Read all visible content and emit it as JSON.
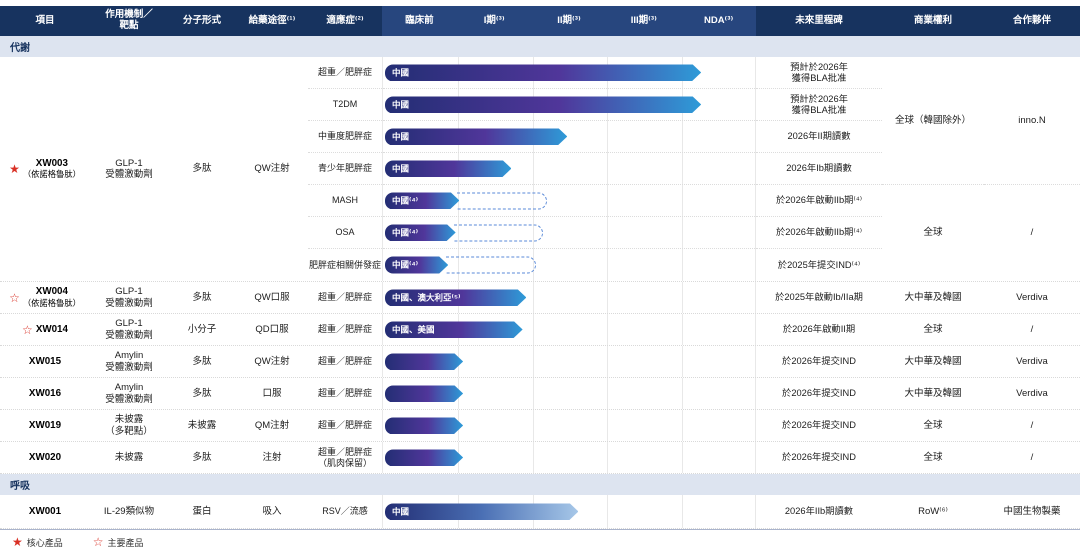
{
  "columns": {
    "project": "項目",
    "mechanism": "作用機制／\n靶點",
    "molecule": "分子形式",
    "route": "給藥途徑⁽¹⁾",
    "indication": "適應症⁽²⁾",
    "phases": [
      "臨床前",
      "I期⁽³⁾",
      "II期⁽³⁾",
      "III期⁽³⁾",
      "NDA⁽³⁾"
    ],
    "milestone": "未來里程碑",
    "rights": "商業權利",
    "partner": "合作夥伴"
  },
  "sections": [
    {
      "label": "代謝"
    },
    {
      "label": "呼吸"
    }
  ],
  "colors": {
    "header_navy": "#17335f",
    "phase_header": "#27467e",
    "band_bg": "#dde4f0",
    "bar_start": "#232e74",
    "bar_mid": "#50369a",
    "bar_end": "#2e9bd8",
    "bar_light_end": "#a6c7e8",
    "star_red": "#d93025"
  },
  "groups": [
    {
      "star": "★",
      "code": "XW003",
      "cname": "（依諾格魯肽）",
      "mechanism": "GLP-1\n受體激動劑",
      "molecule": "多肽",
      "route": "QW注射",
      "rows": [
        {
          "indication": "超重／肥胖症",
          "bar": {
            "label": "中國",
            "style": "width:85%"
          },
          "milestone": "預計於2026年\n獲得BLA批准"
        },
        {
          "indication": "T2DM",
          "bar": {
            "label": "中國",
            "style": "width:85%"
          },
          "milestone": "預計於2026年\n獲得BLA批准"
        },
        {
          "indication": "中重度肥胖症",
          "bar": {
            "label": "中國",
            "style": "width:49%"
          },
          "milestone": "2026年II期讀數"
        },
        {
          "indication": "青少年肥胖症",
          "bar": {
            "label": "中國",
            "style": "width:34%"
          },
          "milestone": "2026年Ib期讀數"
        },
        {
          "indication": "MASH",
          "bar": {
            "label": "中國⁽⁴⁾",
            "style": "width:20%",
            "dash": "left:20%;width:24%"
          },
          "milestone": "於2026年啟動IIb期⁽⁴⁾"
        },
        {
          "indication": "OSA",
          "bar": {
            "label": "中國⁽⁴⁾",
            "style": "width:19%",
            "dash": "left:19%;width:24%"
          },
          "milestone": "於2026年啟動IIb期⁽⁴⁾"
        },
        {
          "indication": "肥胖症相關併發症",
          "bar": {
            "label": "中國⁽⁴⁾",
            "style": "width:17%",
            "dash": "left:17%;width:24%"
          },
          "milestone": "於2025年提交IND⁽⁴⁾"
        }
      ],
      "rights": [
        "全球（韓國除外）",
        "全球"
      ],
      "partners": [
        "inno.N",
        "/"
      ]
    },
    {
      "star": "☆",
      "code": "XW004",
      "cname": "（依諾格魯肽）",
      "mechanism": "GLP-1\n受體激動劑",
      "molecule": "多肽",
      "route": "QW口服",
      "rows": [
        {
          "indication": "超重／肥胖症",
          "bar": {
            "label": "中國、澳大利亞⁽⁵⁾",
            "style": "width:38%"
          },
          "milestone": "於2025年啟動Ib/IIa期"
        }
      ],
      "rights": [
        "大中華及韓國"
      ],
      "partners": [
        "Verdiva"
      ]
    },
    {
      "star": "☆",
      "code": "XW014",
      "cname": "",
      "mechanism": "GLP-1\n受體激動劑",
      "molecule": "小分子",
      "route": "QD口服",
      "rows": [
        {
          "indication": "超重／肥胖症",
          "bar": {
            "label": "中國、美國",
            "style": "width:37%"
          },
          "milestone": "於2026年啟動II期"
        }
      ],
      "rights": [
        "全球"
      ],
      "partners": [
        "/"
      ]
    },
    {
      "star": "",
      "code": "XW015",
      "cname": "",
      "mechanism": "Amylin\n受體激動劑",
      "molecule": "多肽",
      "route": "QW注射",
      "rows": [
        {
          "indication": "超重／肥胖症",
          "bar": {
            "label": "",
            "style": "width:21%"
          },
          "milestone": "於2026年提交IND"
        }
      ],
      "rights": [
        "大中華及韓國"
      ],
      "partners": [
        "Verdiva"
      ]
    },
    {
      "star": "",
      "code": "XW016",
      "cname": "",
      "mechanism": "Amylin\n受體激動劑",
      "molecule": "多肽",
      "route": "口服",
      "rows": [
        {
          "indication": "超重／肥胖症",
          "bar": {
            "label": "",
            "style": "width:21%"
          },
          "milestone": "於2026年提交IND"
        }
      ],
      "rights": [
        "大中華及韓國"
      ],
      "partners": [
        "Verdiva"
      ]
    },
    {
      "star": "",
      "code": "XW019",
      "cname": "",
      "mechanism": "未披露\n（多靶點）",
      "molecule": "未披露",
      "route": "QM注射",
      "rows": [
        {
          "indication": "超重／肥胖症",
          "bar": {
            "label": "",
            "style": "width:21%"
          },
          "milestone": "於2026年提交IND"
        }
      ],
      "rights": [
        "全球"
      ],
      "partners": [
        "/"
      ]
    },
    {
      "star": "",
      "code": "XW020",
      "cname": "",
      "mechanism": "未披露",
      "molecule": "多肽",
      "route": "注射",
      "rows": [
        {
          "indication": "超重／肥胖症\n（肌肉保留）",
          "bar": {
            "label": "",
            "style": "width:21%"
          },
          "milestone": "於2026年提交IND"
        }
      ],
      "rights": [
        "全球"
      ],
      "partners": [
        "/"
      ]
    },
    {
      "star": "",
      "code": "XW001",
      "cname": "",
      "mechanism": "IL-29類似物",
      "molecule": "蛋白",
      "route": "吸入",
      "rows": [
        {
          "indication": "RSV／流感",
          "bar": {
            "label": "中國",
            "style": "width:52%"
          },
          "milestone": "2026年IIb期讀數"
        }
      ],
      "rights": [
        "RoW⁽⁶⁾"
      ],
      "partners": [
        "中國生物製藥"
      ]
    }
  ],
  "legend": {
    "core_star": "★",
    "core_label": "核心產品",
    "major_star": "☆",
    "major_label": "主要產品"
  }
}
